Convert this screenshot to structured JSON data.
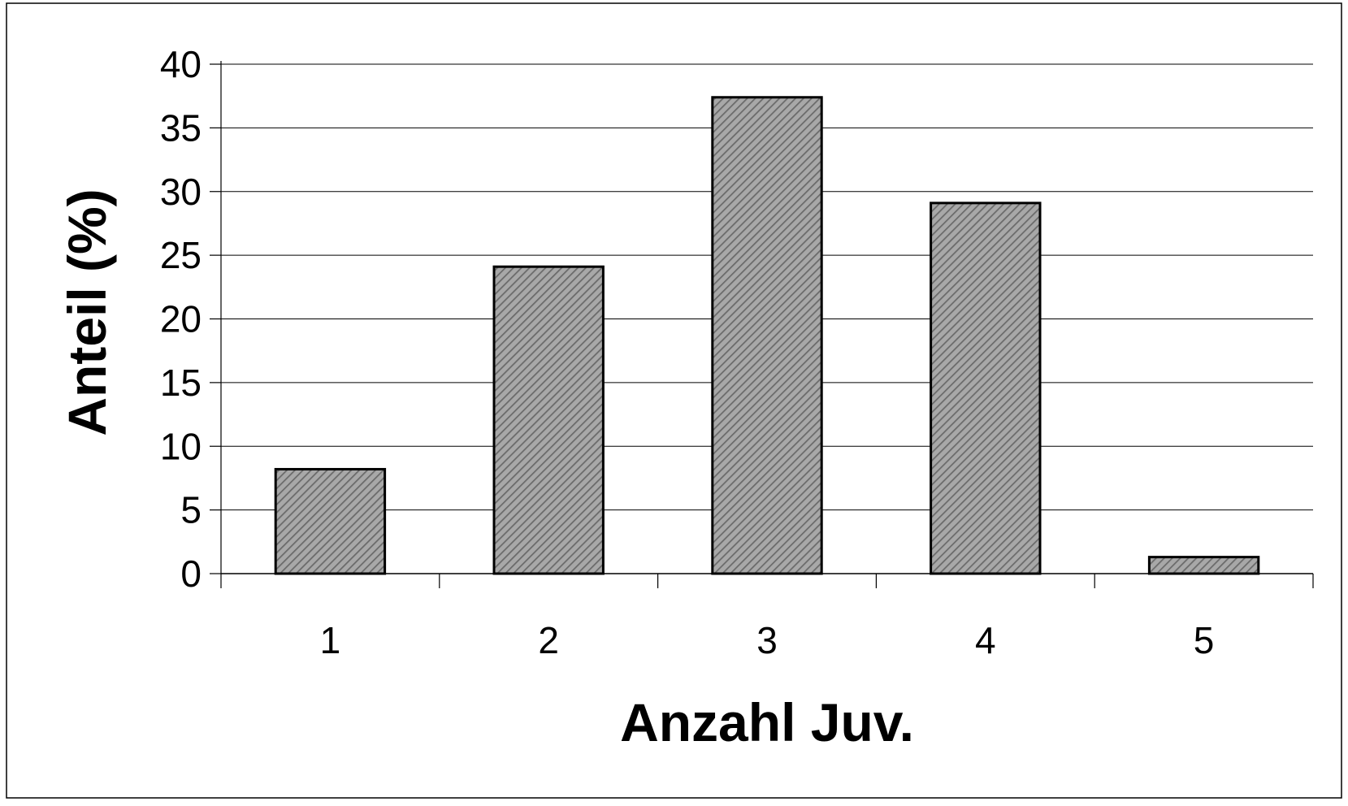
{
  "colors": {
    "bar_fill_base": "#a8a8a8",
    "bar_hatch": "#6a6a6a",
    "bar_stroke": "#000000",
    "gridline": "#000000",
    "frame": "#000000",
    "background": "#ffffff"
  },
  "chart_data": {
    "type": "bar",
    "title": "",
    "xlabel": "Anzahl Juv.",
    "ylabel": "Anteil (%)",
    "categories": [
      "1",
      "2",
      "3",
      "4",
      "5"
    ],
    "values": [
      8.2,
      24.1,
      37.4,
      29.1,
      1.3
    ],
    "ylim": [
      0,
      40
    ],
    "yticks": [
      "0",
      "5",
      "10",
      "15",
      "20",
      "25",
      "30",
      "35",
      "40"
    ],
    "ytick_values": [
      0,
      5,
      10,
      15,
      20,
      25,
      30,
      35,
      40
    ],
    "grid": true,
    "legend": "none",
    "bar_pattern": "diagonal-hatch"
  }
}
